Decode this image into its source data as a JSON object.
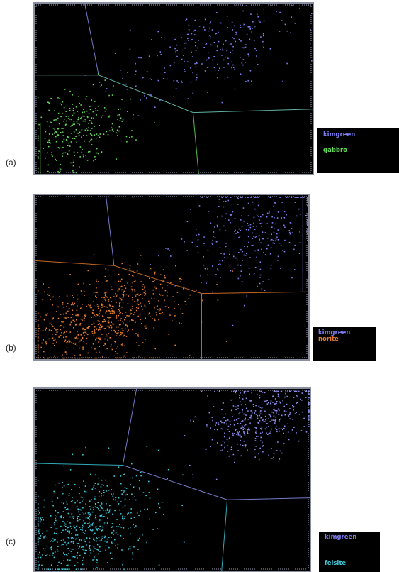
{
  "chart_data": [
    {
      "type": "scatter",
      "panel_label": "(a)",
      "legend": [
        {
          "label": "kimgreen",
          "color": "#7c7cf0"
        },
        {
          "label": "gabbro",
          "color": "#64d85a"
        }
      ],
      "series": [
        {
          "name": "kimgreen",
          "color": "#7c7cf0",
          "count": 260,
          "center": [
            0.62,
            0.28
          ],
          "spread": [
            0.16,
            0.12
          ],
          "tilt": -0.55
        },
        {
          "name": "gabbro",
          "color": "#64d85a",
          "count": 300,
          "center": [
            0.15,
            0.74
          ],
          "spread": [
            0.09,
            0.11
          ],
          "tilt": -0.4
        }
      ],
      "boundaries": [
        {
          "color": "#8a8ff0",
          "points": [
            [
              0.18,
              0.0
            ],
            [
              0.23,
              0.42
            ]
          ]
        },
        {
          "color": "#6fd0c0",
          "points": [
            [
              0.0,
              0.42
            ],
            [
              0.23,
              0.42
            ],
            [
              0.57,
              0.64
            ],
            [
              1.0,
              0.62
            ]
          ]
        },
        {
          "color": "#64d85a",
          "points": [
            [
              0.57,
              0.64
            ],
            [
              0.59,
              1.0
            ]
          ]
        },
        {
          "color": "#64d85a",
          "points": [
            [
              0.02,
              0.7
            ],
            [
              0.02,
              1.0
            ]
          ]
        }
      ]
    },
    {
      "type": "scatter",
      "panel_label": "(b)",
      "legend": [
        {
          "label": "kimgreen",
          "color": "#7c7cf0"
        },
        {
          "label": "norite",
          "color": "#e07a2a"
        }
      ],
      "series": [
        {
          "name": "kimgreen",
          "color": "#7c7cf0",
          "count": 320,
          "center": [
            0.78,
            0.22
          ],
          "spread": [
            0.13,
            0.15
          ],
          "tilt": -0.3
        },
        {
          "name": "norite",
          "color": "#e07a2a",
          "count": 700,
          "center": [
            0.24,
            0.76
          ],
          "spread": [
            0.14,
            0.12
          ],
          "tilt": -0.45
        }
      ],
      "boundaries": [
        {
          "color": "#8a8ff0",
          "points": [
            [
              0.26,
              0.0
            ],
            [
              0.29,
              0.43
            ]
          ]
        },
        {
          "color": "#e07a2a",
          "points": [
            [
              0.0,
              0.4
            ],
            [
              0.29,
              0.43
            ],
            [
              0.61,
              0.6
            ],
            [
              1.0,
              0.59
            ]
          ]
        },
        {
          "color": "#e07a2a",
          "points": [
            [
              0.61,
              0.6
            ],
            [
              0.61,
              1.0
            ]
          ]
        },
        {
          "color": "#8a8ff0",
          "points": [
            [
              0.98,
              0.0
            ],
            [
              0.98,
              0.59
            ]
          ]
        }
      ]
    },
    {
      "type": "scatter",
      "panel_label": "(c)",
      "legend": [
        {
          "label": "kimgreen",
          "color": "#7c7cf0"
        },
        {
          "label": "felsite",
          "color": "#3ac8d8"
        }
      ],
      "series": [
        {
          "name": "kimgreen",
          "color": "#8c8cf0",
          "count": 420,
          "center": [
            0.82,
            0.16
          ],
          "spread": [
            0.1,
            0.1
          ],
          "tilt": -0.35
        },
        {
          "name": "felsite",
          "color": "#3ac8d8",
          "count": 620,
          "center": [
            0.19,
            0.74
          ],
          "spread": [
            0.12,
            0.13
          ],
          "tilt": -0.45
        }
      ],
      "boundaries": [
        {
          "color": "#8a8ff0",
          "points": [
            [
              0.37,
              0.0
            ],
            [
              0.32,
              0.42
            ]
          ]
        },
        {
          "color": "#8a8ff0",
          "points": [
            [
              0.32,
              0.42
            ],
            [
              0.7,
              0.61
            ],
            [
              1.0,
              0.6
            ]
          ]
        },
        {
          "color": "#3ac8d8",
          "points": [
            [
              0.0,
              0.41
            ],
            [
              0.32,
              0.42
            ]
          ]
        },
        {
          "color": "#3ac8d8",
          "points": [
            [
              0.7,
              0.61
            ],
            [
              0.68,
              1.0
            ]
          ]
        }
      ]
    }
  ]
}
